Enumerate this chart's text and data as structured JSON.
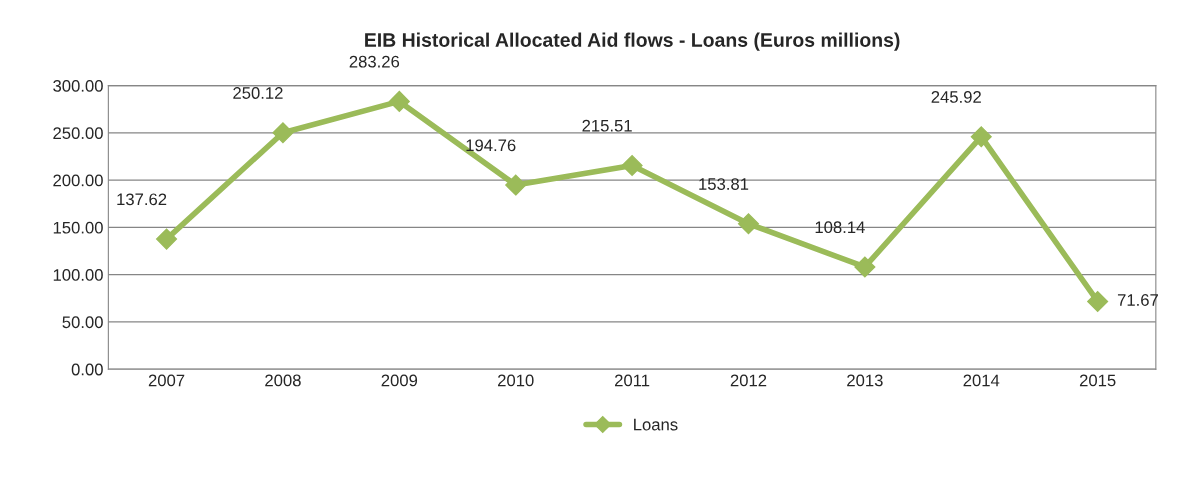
{
  "chart_data": {
    "type": "line",
    "title": "EIB Historical Allocated Aid flows - Loans (Euros millions)",
    "categories": [
      "2007",
      "2008",
      "2009",
      "2010",
      "2011",
      "2012",
      "2013",
      "2014",
      "2015"
    ],
    "series": [
      {
        "name": "Loans",
        "color": "#9bbb59",
        "values": [
          137.62,
          250.12,
          283.26,
          194.76,
          215.51,
          153.81,
          108.14,
          245.92,
          71.67
        ]
      }
    ],
    "ylim": [
      0,
      300
    ],
    "yticks": [
      {
        "value": 0,
        "label": "0.00"
      },
      {
        "value": 50,
        "label": "50.00"
      },
      {
        "value": 100,
        "label": "100.00"
      },
      {
        "value": 150,
        "label": "150.00"
      },
      {
        "value": 200,
        "label": "200.00"
      },
      {
        "value": 250,
        "label": "250.00"
      },
      {
        "value": 300,
        "label": "300.00"
      }
    ],
    "grid": "y",
    "legend": "bottom",
    "marker": "diamond",
    "line_style": "solid",
    "data_labels": true
  }
}
